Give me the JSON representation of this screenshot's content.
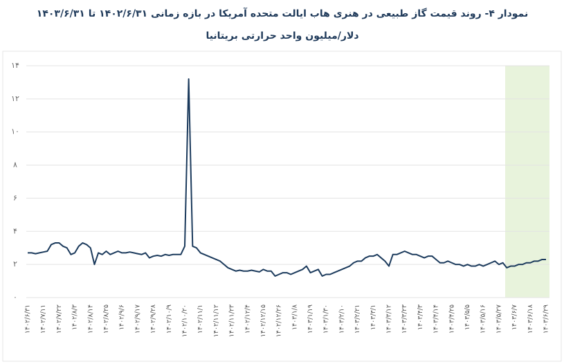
{
  "chart_data": {
    "type": "line",
    "title": "نمودار ۴- روند قیمت گاز طبیعی در هنری هاب ایالت متحده آمریکا در بازه زمانی ۱۴۰۲/۶/۳۱ تا ۱۴۰۳/۶/۳۱",
    "subtitle": "دلار/میلیون واحد حرارتی بریتانیا",
    "categories": [
      "۱۴۰۲/۶/۳۱",
      null,
      null,
      null,
      "۱۴۰۲/۷/۱۱",
      null,
      null,
      null,
      "۱۴۰۲/۷/۲۲",
      null,
      null,
      null,
      "۱۴۰۲/۸/۳",
      null,
      null,
      null,
      "۱۴۰۲/۸/۱۴",
      null,
      null,
      null,
      "۱۴۰۲/۸/۲۵",
      null,
      null,
      null,
      "۱۴۰۲/۹/۶",
      null,
      null,
      null,
      "۱۴۰۲/۹/۱۷",
      null,
      null,
      null,
      "۱۴۰۲/۹/۲۸",
      null,
      null,
      null,
      "۱۴۰۲/۱۰/۹",
      null,
      null,
      null,
      "۱۴۰۲/۱۰/۲۰",
      null,
      null,
      null,
      "۱۴۰۲/۱۱/۱",
      null,
      null,
      null,
      "۱۴۰۲/۱۱/۱۲",
      null,
      null,
      null,
      "۱۴۰۲/۱۱/۲۳",
      null,
      null,
      null,
      "۱۴۰۲/۱۲/۴",
      null,
      null,
      null,
      "۱۴۰۲/۱۲/۱۵",
      null,
      null,
      null,
      "۱۴۰۲/۱۲/۲۶",
      null,
      null,
      null,
      "۱۴۰۳/۱/۸",
      null,
      null,
      null,
      "۱۴۰۳/۱/۱۹",
      null,
      null,
      null,
      "۱۴۰۳/۱/۳۰",
      null,
      null,
      null,
      "۱۴۰۳/۲/۱۰",
      null,
      null,
      null,
      "۱۴۰۳/۲/۲۱",
      null,
      null,
      null,
      "۱۴۰۳/۳/۱",
      null,
      null,
      null,
      "۱۴۰۳/۳/۱۲",
      null,
      null,
      null,
      "۱۴۰۳/۳/۲۳",
      null,
      null,
      null,
      "۱۴۰۳/۴/۳",
      null,
      null,
      null,
      "۱۴۰۳/۴/۱۴",
      null,
      null,
      null,
      "۱۴۰۳/۴/۲۵",
      null,
      null,
      null,
      "۱۴۰۳/۵/۵",
      null,
      null,
      null,
      "۱۴۰۳/۵/۱۶",
      null,
      null,
      null,
      "۱۴۰۳/۵/۲۷",
      null,
      null,
      null,
      "۱۴۰۳/۶/۷",
      null,
      null,
      null,
      "۱۴۰۳/۶/۱۸",
      null,
      null,
      null,
      "۱۴۰۳/۶/۲۹"
    ],
    "series": [
      {
        "color": "#1b3a5c",
        "values": [
          2.7,
          2.7,
          2.65,
          2.7,
          2.75,
          2.8,
          3.2,
          3.3,
          3.3,
          3.1,
          3.0,
          2.6,
          2.7,
          3.1,
          3.3,
          3.2,
          3.0,
          2.0,
          2.7,
          2.6,
          2.8,
          2.6,
          2.7,
          2.8,
          2.7,
          2.7,
          2.75,
          2.7,
          2.65,
          2.6,
          2.7,
          2.4,
          2.5,
          2.55,
          2.5,
          2.6,
          2.55,
          2.6,
          2.6,
          2.6,
          3.1,
          13.2,
          3.1,
          3.0,
          2.7,
          2.6,
          2.5,
          2.4,
          2.3,
          2.2,
          2.0,
          1.8,
          1.7,
          1.6,
          1.65,
          1.6,
          1.6,
          1.65,
          1.6,
          1.55,
          1.7,
          1.6,
          1.6,
          1.3,
          1.4,
          1.5,
          1.5,
          1.4,
          1.5,
          1.6,
          1.7,
          1.9,
          1.5,
          1.6,
          1.7,
          1.3,
          1.4,
          1.4,
          1.5,
          1.6,
          1.7,
          1.8,
          1.9,
          2.1,
          2.2,
          2.2,
          2.4,
          2.5,
          2.5,
          2.6,
          2.4,
          2.2,
          1.9,
          2.6,
          2.6,
          2.7,
          2.8,
          2.7,
          2.6,
          2.6,
          2.5,
          2.4,
          2.5,
          2.5,
          2.3,
          2.1,
          2.1,
          2.2,
          2.1,
          2.0,
          2.0,
          1.9,
          2.0,
          1.9,
          1.9,
          2.0,
          1.9,
          2.0,
          2.1,
          2.2,
          2.0,
          2.1,
          1.8,
          1.9,
          1.9,
          2.0,
          2.0,
          2.1,
          2.1,
          2.2,
          2.2,
          2.3,
          2.3
        ]
      }
    ],
    "ylim": [
      0,
      14
    ],
    "yticks": [
      {
        "value": 0,
        "label": "۰"
      },
      {
        "value": 2,
        "label": "۲"
      },
      {
        "value": 4,
        "label": "۴"
      },
      {
        "value": 6,
        "label": "۶"
      },
      {
        "value": 8,
        "label": "۸"
      },
      {
        "value": 10,
        "label": "۱۰"
      },
      {
        "value": 12,
        "label": "۱۲"
      },
      {
        "value": 14,
        "label": "۱۴"
      }
    ],
    "grid": true
  }
}
